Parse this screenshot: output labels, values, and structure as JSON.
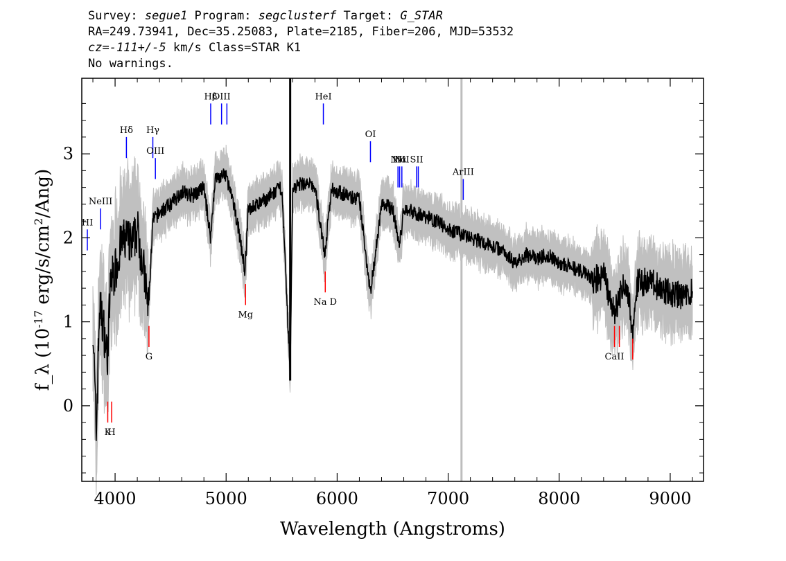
{
  "header": {
    "line1": {
      "survey_label": "Survey: ",
      "survey": "segue1",
      "program_label": " Program: ",
      "program": "segclusterf",
      "target_label": " Target: ",
      "target": "G_STAR"
    },
    "line2": "RA=249.73941, Dec=35.25083, Plate=2185, Fiber=206, MJD=53532",
    "line3": {
      "cz": "cz=-111+/-5",
      "rest": " km/s Class=STAR K1"
    },
    "line4": "No warnings."
  },
  "chart_data": {
    "type": "line",
    "xlabel": "Wavelength (Angstroms)",
    "ylabel": "f_λ (10^-17 erg/s/cm^2/Ang)",
    "xlim": [
      3700,
      9300
    ],
    "ylim": [
      -0.9,
      3.9
    ],
    "xticks": [
      "4000",
      "5000",
      "6000",
      "7000",
      "8000",
      "9000"
    ],
    "yticks": [
      "0",
      "1",
      "2",
      "3"
    ],
    "colors": {
      "flux": "#000000",
      "error": "#c0c0c0",
      "emission": "#0000ff",
      "absorption": "#ff0000"
    },
    "series": [
      {
        "role": "flux",
        "x": [
          3800,
          3830,
          3860,
          3900,
          3930,
          3960,
          4000,
          4050,
          4100,
          4150,
          4200,
          4250,
          4300,
          4340,
          4400,
          4500,
          4600,
          4700,
          4800,
          4861,
          4900,
          5000,
          5100,
          5170,
          5200,
          5300,
          5400,
          5500,
          5577,
          5600,
          5700,
          5800,
          5890,
          5950,
          6000,
          6100,
          6200,
          6300,
          6400,
          6500,
          6563,
          6600,
          6700,
          6800,
          6900,
          7000,
          7100,
          7200,
          7300,
          7400,
          7500,
          7600,
          7700,
          7800,
          7900,
          8000,
          8100,
          8200,
          8300,
          8400,
          8498,
          8542,
          8600,
          8662,
          8700,
          8800,
          8900,
          9000,
          9100,
          9200
        ],
        "y": [
          1.0,
          -0.35,
          1.2,
          0.9,
          0.55,
          1.5,
          1.6,
          1.9,
          2.0,
          1.9,
          2.1,
          1.7,
          1.15,
          2.2,
          2.3,
          2.4,
          2.55,
          2.5,
          2.6,
          2.0,
          2.7,
          2.75,
          2.2,
          1.6,
          2.35,
          2.4,
          2.5,
          2.6,
          0.4,
          2.6,
          2.65,
          2.6,
          1.8,
          2.6,
          2.55,
          2.5,
          2.45,
          1.35,
          2.4,
          2.35,
          1.9,
          2.35,
          2.3,
          2.25,
          2.2,
          2.1,
          2.05,
          2.0,
          1.95,
          1.9,
          1.85,
          1.7,
          1.8,
          1.75,
          1.8,
          1.7,
          1.65,
          1.6,
          1.5,
          1.55,
          1.1,
          1.3,
          1.5,
          0.9,
          1.45,
          1.5,
          1.4,
          1.35,
          1.3,
          1.35
        ]
      }
    ],
    "emission_lines": [
      {
        "label": "HI",
        "x": 3750,
        "y": [
          1.85,
          2.1
        ]
      },
      {
        "label": "NeIII",
        "x": 3869,
        "y": [
          2.1,
          2.35
        ]
      },
      {
        "label": "Hδ",
        "x": 4102,
        "y": [
          2.95,
          3.2
        ]
      },
      {
        "label": "Hγ",
        "x": 4340,
        "y": [
          2.95,
          3.2
        ]
      },
      {
        "label": "OIII",
        "x": 4363,
        "y": [
          2.7,
          2.95
        ]
      },
      {
        "label": "Hβ",
        "x": 4861,
        "y": [
          3.35,
          3.6
        ]
      },
      {
        "label": "OIII",
        "x": 4959,
        "y": [
          3.35,
          3.6
        ]
      },
      {
        "label": "",
        "x": 5007,
        "y": [
          3.35,
          3.6
        ]
      },
      {
        "label": "HeI",
        "x": 5876,
        "y": [
          3.35,
          3.6
        ]
      },
      {
        "label": "OI",
        "x": 6300,
        "y": [
          2.9,
          3.15
        ]
      },
      {
        "label": "NII",
        "x": 6548,
        "y": [
          2.6,
          2.85
        ]
      },
      {
        "label": "Hα",
        "x": 6563,
        "y": [
          2.6,
          2.85
        ]
      },
      {
        "label": "NII",
        "x": 6583,
        "y": [
          2.6,
          2.85
        ]
      },
      {
        "label": "SII",
        "x": 6716,
        "y": [
          2.6,
          2.85
        ]
      },
      {
        "label": "",
        "x": 6731,
        "y": [
          2.6,
          2.85
        ]
      },
      {
        "label": "ArIII",
        "x": 7136,
        "y": [
          2.45,
          2.7
        ]
      }
    ],
    "absorption_lines": [
      {
        "label": "K",
        "x": 3934,
        "y": [
          0.05,
          -0.2
        ]
      },
      {
        "label": "H",
        "x": 3969,
        "y": [
          0.05,
          -0.2
        ]
      },
      {
        "label": "G",
        "x": 4305,
        "y": [
          0.95,
          0.7
        ]
      },
      {
        "label": "Mg",
        "x": 5175,
        "y": [
          1.45,
          1.2
        ]
      },
      {
        "label": "Na D",
        "x": 5893,
        "y": [
          1.6,
          1.35
        ]
      },
      {
        "label": "CaII",
        "x": 8498,
        "y": [
          0.95,
          0.7
        ]
      },
      {
        "label": "",
        "x": 8542,
        "y": [
          0.95,
          0.7
        ]
      },
      {
        "label": "",
        "x": 8662,
        "y": [
          0.8,
          0.55
        ]
      }
    ],
    "sky_line_x": 7120
  }
}
